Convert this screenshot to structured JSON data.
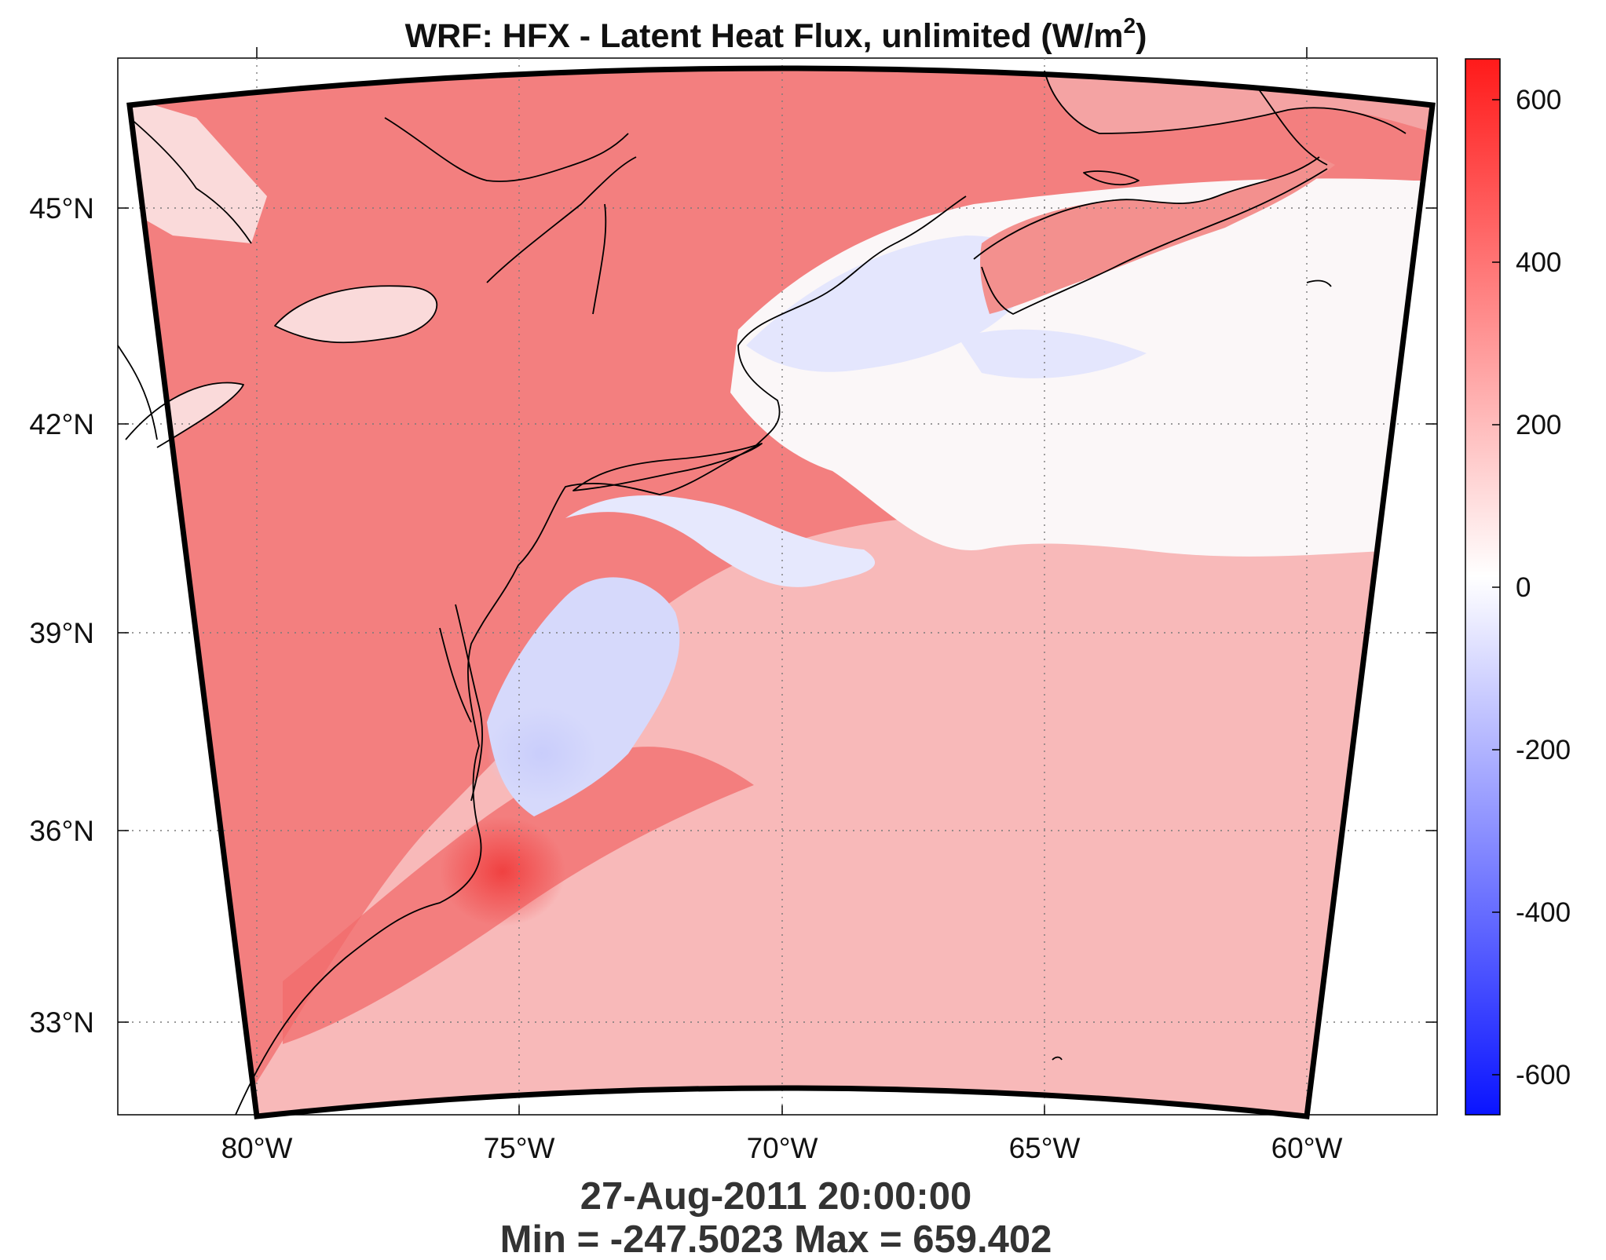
{
  "title": {
    "prefix": "WRF: HFX - Latent Heat Flux, unlimited (W/m",
    "superscript": "2",
    "suffix": ")"
  },
  "timestamp": "27-Aug-2011 20:00:00",
  "stats": "Min = -247.5023  Max = 659.402",
  "map": {
    "lon_range": [
      -82.7,
      -57.6
    ],
    "lat_range": [
      31.7,
      47.3
    ],
    "lon_ticks": [
      {
        "value": -80,
        "label": "80°W"
      },
      {
        "value": -75,
        "label": "75°W"
      },
      {
        "value": -70,
        "label": "70°W"
      },
      {
        "value": -65,
        "label": "65°W"
      },
      {
        "value": -60,
        "label": "60°W"
      }
    ],
    "lat_ticks": [
      {
        "value": 33,
        "label": "33°N"
      },
      {
        "value": 36,
        "label": "36°N"
      },
      {
        "value": 39,
        "label": "39°N"
      },
      {
        "value": 42,
        "label": "42°N"
      },
      {
        "value": 45,
        "label": "45°N"
      }
    ]
  },
  "colorbar": {
    "range": [
      -650,
      650
    ],
    "colors": {
      "low": "#0a14ff",
      "mid": "#ffffff",
      "high": "#ff1a1a"
    },
    "ticks": [
      {
        "value": 600,
        "label": "600"
      },
      {
        "value": 400,
        "label": "400"
      },
      {
        "value": 200,
        "label": "200"
      },
      {
        "value": 0,
        "label": "0"
      },
      {
        "value": -200,
        "label": "-200"
      },
      {
        "value": -400,
        "label": "-400"
      },
      {
        "value": -600,
        "label": "-600"
      }
    ]
  }
}
